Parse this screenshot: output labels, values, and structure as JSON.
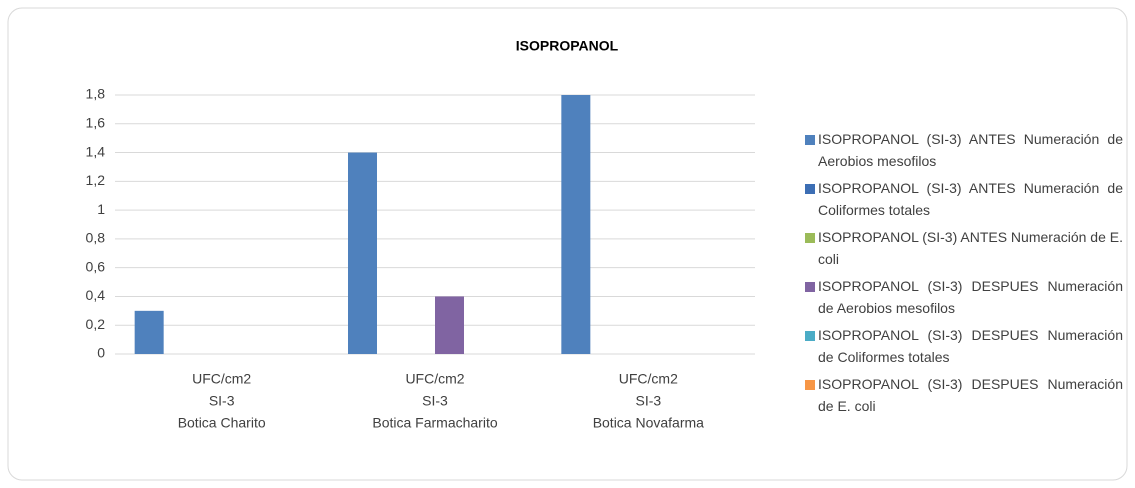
{
  "chart_data": {
    "type": "bar",
    "title": "ISOPROPANOL",
    "categories": [
      [
        "UFC/cm2",
        "SI-3",
        "Botica Charito"
      ],
      [
        "UFC/cm2",
        "SI-3",
        "Botica Farmacharito"
      ],
      [
        "UFC/cm2",
        "SI-3",
        "Botica Novafarma"
      ]
    ],
    "series": [
      {
        "name": "ISOPROPANOL (SI-3) ANTES Numeración de Aerobios mesofilos",
        "color": "#4f81bd",
        "values": [
          0.3,
          1.4,
          1.8
        ]
      },
      {
        "name": "ISOPROPANOL (SI-3) ANTES Numeración de Coliformes totales",
        "color": "#3c6eb4",
        "values": [
          0,
          0,
          0
        ]
      },
      {
        "name": "ISOPROPANOL (SI-3) ANTES Numeración de E. coli",
        "color": "#9bbb59",
        "values": [
          0,
          0,
          0
        ]
      },
      {
        "name": "ISOPROPANOL (SI-3) DESPUES Numeración de Aerobios mesofilos",
        "color": "#8064a2",
        "values": [
          0,
          0.4,
          0
        ]
      },
      {
        "name": "ISOPROPANOL (SI-3) DESPUES Numeración de Coliformes totales",
        "color": "#4bacc6",
        "values": [
          0,
          0,
          0
        ]
      },
      {
        "name": "ISOPROPANOL (SI-3) DESPUES Numeración de E. coli",
        "color": "#f79646",
        "values": [
          0,
          0,
          0
        ]
      }
    ],
    "ylim": [
      0,
      1.8
    ],
    "yticks": [
      0,
      {
        "value": 0.2,
        "label": "0,2"
      },
      {
        "value": 0.4,
        "label": "0,4"
      },
      {
        "value": 0.6,
        "label": "0,6"
      },
      {
        "value": 0.8,
        "label": "0,8"
      },
      1,
      {
        "value": 1.2,
        "label": "1,2"
      },
      {
        "value": 1.4,
        "label": "1,4"
      },
      {
        "value": 1.6,
        "label": "1,6"
      },
      {
        "value": 1.8,
        "label": "1,8"
      }
    ],
    "grid": true,
    "legend": "right"
  }
}
